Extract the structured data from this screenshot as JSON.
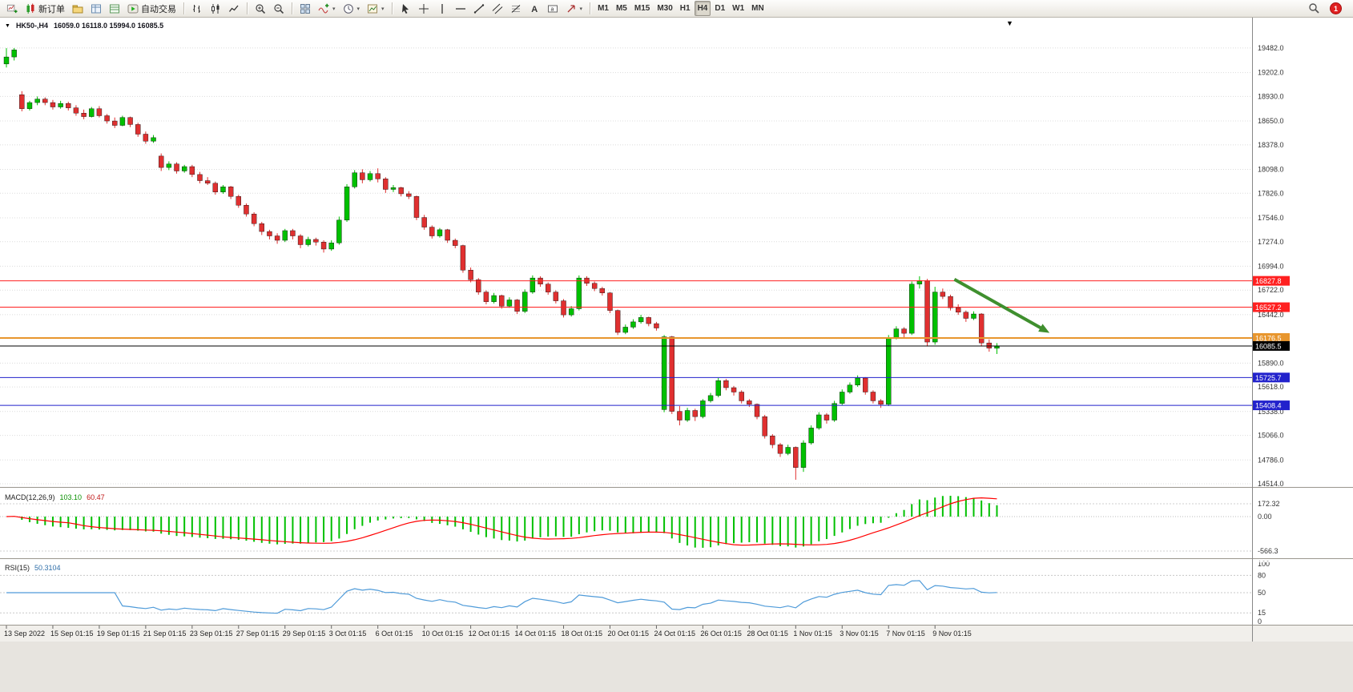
{
  "toolbar": {
    "notification_count": "1",
    "groups": [
      {
        "items": [
          {
            "name": "new-chart",
            "icon": "new-chart"
          },
          {
            "name": "new-order",
            "icon": "new-order",
            "label": "新订单"
          },
          {
            "name": "profiles",
            "icon": "profiles"
          },
          {
            "name": "market-watch",
            "icon": "market-watch"
          },
          {
            "name": "data-window",
            "icon": "data-window"
          },
          {
            "name": "autotrading",
            "icon": "autotrading",
            "label": "自动交易"
          }
        ]
      },
      {
        "items": [
          {
            "name": "bar-chart",
            "icon": "bar-chart"
          },
          {
            "name": "candlestick-chart",
            "icon": "candlestick-chart"
          },
          {
            "name": "line-chart",
            "icon": "line-chart"
          }
        ]
      },
      {
        "items": [
          {
            "name": "zoom-in",
            "icon": "zoom-in"
          },
          {
            "name": "zoom-out",
            "icon": "zoom-out"
          }
        ]
      },
      {
        "items": [
          {
            "name": "tile-windows",
            "icon": "tile-windows"
          },
          {
            "name": "indicators",
            "icon": "indicators",
            "dropdown": true
          },
          {
            "name": "periods",
            "icon": "periods",
            "dropdown": true
          },
          {
            "name": "templates",
            "icon": "templates",
            "dropdown": true
          }
        ]
      },
      {
        "items": [
          {
            "name": "cursor",
            "icon": "cursor"
          },
          {
            "name": "crosshair",
            "icon": "crosshair"
          },
          {
            "name": "vertical-line",
            "icon": "vertical-line"
          },
          {
            "name": "horizontal-line",
            "icon": "horizontal-line"
          },
          {
            "name": "trendline",
            "icon": "trendline"
          },
          {
            "name": "equidistant-channel",
            "icon": "channel"
          },
          {
            "name": "fibonacci",
            "icon": "fibonacci"
          },
          {
            "name": "text",
            "icon": "text"
          },
          {
            "name": "text-label",
            "icon": "text-label"
          },
          {
            "name": "arrows",
            "icon": "arrows",
            "dropdown": true
          }
        ]
      },
      {
        "items": [
          {
            "label": "M1"
          },
          {
            "label": "M5"
          },
          {
            "label": "M15"
          },
          {
            "label": "M30"
          },
          {
            "label": "H1"
          },
          {
            "label": "H4",
            "active": true
          },
          {
            "label": "D1"
          },
          {
            "label": "W1"
          },
          {
            "label": "MN"
          }
        ]
      }
    ]
  },
  "chart_header": {
    "menu_arrow": "▼",
    "symbol_tf": "HK50-,H4",
    "ohlc": "16059.0 16118.0 15994.0 16085.5",
    "shift_marker": "▼"
  },
  "indicators": {
    "macd": {
      "name": "MACD(12,26,9)",
      "value_main": "103.10",
      "value_signal": "60.47"
    },
    "rsi": {
      "name": "RSI(15)",
      "value": "50.3104"
    }
  },
  "chart_data": {
    "type": "candlestick",
    "symbol": "HK50-",
    "timeframe": "H4",
    "ohlc_current": {
      "open": 16059.0,
      "high": 16118.0,
      "low": 15994.0,
      "close": 16085.5
    },
    "price_axis": {
      "ylim": [
        14478,
        19664
      ],
      "ticks": [
        19482.0,
        19202.0,
        18930.0,
        18650.0,
        18378.0,
        18098.0,
        17826.0,
        17546.0,
        17274.0,
        16994.0,
        16722.0,
        16442.0,
        16170.0,
        15890.0,
        15618.0,
        15338.0,
        15066.0,
        14786.0,
        14514.0
      ]
    },
    "time_axis": {
      "labels": [
        "13 Sep 2022",
        "15 Sep 01:15",
        "19 Sep 01:15",
        "21 Sep 01:15",
        "23 Sep 01:15",
        "27 Sep 01:15",
        "29 Sep 01:15",
        "3 Oct 01:15",
        "6 Oct 01:15",
        "10 Oct 01:15",
        "12 Oct 01:15",
        "14 Oct 01:15",
        "18 Oct 01:15",
        "20 Oct 01:15",
        "24 Oct 01:15",
        "26 Oct 01:15",
        "28 Oct 01:15",
        "1 Nov 01:15",
        "3 Nov 01:15",
        "7 Nov 01:15",
        "9 Nov 01:15"
      ],
      "bars_per_label": 6
    },
    "candles": [
      [
        19300,
        19480,
        19260,
        19380
      ],
      [
        19380,
        19482,
        19340,
        19460
      ],
      [
        18950,
        18990,
        18760,
        18790
      ],
      [
        18790,
        18880,
        18770,
        18860
      ],
      [
        18860,
        18930,
        18830,
        18900
      ],
      [
        18900,
        18920,
        18830,
        18860
      ],
      [
        18860,
        18890,
        18780,
        18810
      ],
      [
        18810,
        18880,
        18790,
        18850
      ],
      [
        18850,
        18870,
        18770,
        18800
      ],
      [
        18800,
        18830,
        18710,
        18740
      ],
      [
        18740,
        18780,
        18670,
        18700
      ],
      [
        18700,
        18810,
        18690,
        18790
      ],
      [
        18790,
        18820,
        18690,
        18710
      ],
      [
        18710,
        18730,
        18620,
        18650
      ],
      [
        18650,
        18690,
        18570,
        18600
      ],
      [
        18600,
        18710,
        18590,
        18690
      ],
      [
        18690,
        18700,
        18580,
        18610
      ],
      [
        18610,
        18630,
        18470,
        18500
      ],
      [
        18500,
        18530,
        18390,
        18420
      ],
      [
        18420,
        18490,
        18400,
        18460
      ],
      [
        18250,
        18280,
        18080,
        18120
      ],
      [
        18120,
        18190,
        18090,
        18160
      ],
      [
        18160,
        18180,
        18050,
        18080
      ],
      [
        18080,
        18150,
        18060,
        18130
      ],
      [
        18130,
        18150,
        18010,
        18040
      ],
      [
        18040,
        18070,
        17940,
        17970
      ],
      [
        17970,
        18010,
        17920,
        17940
      ],
      [
        17940,
        17960,
        17810,
        17840
      ],
      [
        17840,
        17920,
        17820,
        17900
      ],
      [
        17900,
        17910,
        17760,
        17790
      ],
      [
        17790,
        17810,
        17660,
        17690
      ],
      [
        17690,
        17710,
        17560,
        17590
      ],
      [
        17590,
        17610,
        17450,
        17480
      ],
      [
        17480,
        17500,
        17350,
        17390
      ],
      [
        17390,
        17410,
        17300,
        17340
      ],
      [
        17340,
        17370,
        17250,
        17290
      ],
      [
        17290,
        17420,
        17270,
        17400
      ],
      [
        17400,
        17420,
        17300,
        17340
      ],
      [
        17340,
        17360,
        17200,
        17240
      ],
      [
        17240,
        17330,
        17220,
        17300
      ],
      [
        17300,
        17320,
        17230,
        17270
      ],
      [
        17270,
        17290,
        17150,
        17190
      ],
      [
        17190,
        17290,
        17170,
        17260
      ],
      [
        17260,
        17560,
        17240,
        17520
      ],
      [
        17520,
        17930,
        17500,
        17900
      ],
      [
        17900,
        18090,
        17880,
        18060
      ],
      [
        18060,
        18100,
        17940,
        17980
      ],
      [
        17980,
        18080,
        17960,
        18050
      ],
      [
        18050,
        18110,
        17950,
        17990
      ],
      [
        17990,
        18010,
        17830,
        17870
      ],
      [
        17870,
        17920,
        17840,
        17890
      ],
      [
        17890,
        17900,
        17790,
        17820
      ],
      [
        17820,
        17850,
        17760,
        17790
      ],
      [
        17790,
        17800,
        17520,
        17550
      ],
      [
        17550,
        17580,
        17410,
        17440
      ],
      [
        17440,
        17460,
        17310,
        17340
      ],
      [
        17340,
        17430,
        17320,
        17410
      ],
      [
        17410,
        17420,
        17260,
        17290
      ],
      [
        17290,
        17310,
        17200,
        17230
      ],
      [
        17230,
        17240,
        16920,
        16950
      ],
      [
        16950,
        16980,
        16810,
        16840
      ],
      [
        16840,
        16860,
        16670,
        16700
      ],
      [
        16700,
        16720,
        16560,
        16590
      ],
      [
        16590,
        16690,
        16570,
        16660
      ],
      [
        16660,
        16670,
        16510,
        16540
      ],
      [
        16540,
        16640,
        16520,
        16610
      ],
      [
        16610,
        16620,
        16450,
        16480
      ],
      [
        16480,
        16730,
        16460,
        16700
      ],
      [
        16700,
        16890,
        16680,
        16860
      ],
      [
        16860,
        16880,
        16760,
        16790
      ],
      [
        16790,
        16810,
        16670,
        16700
      ],
      [
        16700,
        16720,
        16570,
        16600
      ],
      [
        16600,
        16620,
        16410,
        16440
      ],
      [
        16440,
        16540,
        16420,
        16510
      ],
      [
        16510,
        16890,
        16490,
        16860
      ],
      [
        16860,
        16880,
        16770,
        16800
      ],
      [
        16800,
        16820,
        16710,
        16740
      ],
      [
        16740,
        16760,
        16660,
        16690
      ],
      [
        16690,
        16700,
        16460,
        16490
      ],
      [
        16490,
        16500,
        16210,
        16240
      ],
      [
        16240,
        16330,
        16220,
        16300
      ],
      [
        16300,
        16390,
        16280,
        16360
      ],
      [
        16360,
        16440,
        16340,
        16410
      ],
      [
        16410,
        16420,
        16310,
        16340
      ],
      [
        16340,
        16360,
        16260,
        16290
      ],
      [
        15360,
        16210,
        15330,
        16190
      ],
      [
        16190,
        16200,
        15310,
        15340
      ],
      [
        15340,
        15400,
        15180,
        15240
      ],
      [
        15240,
        15380,
        15220,
        15350
      ],
      [
        15350,
        15370,
        15230,
        15280
      ],
      [
        15280,
        15480,
        15260,
        15460
      ],
      [
        15460,
        15550,
        15440,
        15520
      ],
      [
        15520,
        15720,
        15500,
        15690
      ],
      [
        15690,
        15710,
        15580,
        15610
      ],
      [
        15610,
        15630,
        15520,
        15560
      ],
      [
        15560,
        15580,
        15430,
        15460
      ],
      [
        15460,
        15480,
        15390,
        15420
      ],
      [
        15420,
        15430,
        15250,
        15280
      ],
      [
        15280,
        15300,
        15030,
        15060
      ],
      [
        15060,
        15080,
        14920,
        14960
      ],
      [
        14960,
        14980,
        14820,
        14860
      ],
      [
        14860,
        14960,
        14840,
        14930
      ],
      [
        14930,
        14940,
        14560,
        14700
      ],
      [
        14700,
        15010,
        14650,
        14980
      ],
      [
        14980,
        15180,
        14960,
        15150
      ],
      [
        15150,
        15330,
        15130,
        15300
      ],
      [
        15300,
        15320,
        15200,
        15240
      ],
      [
        15240,
        15460,
        15220,
        15430
      ],
      [
        15430,
        15590,
        15410,
        15560
      ],
      [
        15560,
        15670,
        15540,
        15640
      ],
      [
        15640,
        15750,
        15620,
        15720
      ],
      [
        15720,
        15730,
        15530,
        15560
      ],
      [
        15560,
        15580,
        15430,
        15460
      ],
      [
        15460,
        15480,
        15380,
        15420
      ],
      [
        15420,
        16210,
        15400,
        16180
      ],
      [
        16180,
        16310,
        16160,
        16280
      ],
      [
        16280,
        16300,
        16180,
        16230
      ],
      [
        16230,
        16820,
        16210,
        16790
      ],
      [
        16790,
        16880,
        16740,
        16830
      ],
      [
        16830,
        16850,
        16080,
        16130
      ],
      [
        16130,
        16760,
        16100,
        16700
      ],
      [
        16700,
        16740,
        16620,
        16650
      ],
      [
        16650,
        16670,
        16490,
        16520
      ],
      [
        16520,
        16560,
        16440,
        16470
      ],
      [
        16470,
        16490,
        16360,
        16400
      ],
      [
        16400,
        16480,
        16380,
        16450
      ],
      [
        16450,
        16460,
        16080,
        16120
      ],
      [
        16120,
        16160,
        16020,
        16060
      ],
      [
        16059,
        16118,
        15994,
        16085.5
      ]
    ],
    "hlines": [
      {
        "price": 16827.8,
        "label": "16827.8",
        "color": "#FF2020",
        "width": 1
      },
      {
        "price": 16527.2,
        "label": "16527.2",
        "color": "#FF2020",
        "width": 1
      },
      {
        "price": 16176.5,
        "label": "16176.5",
        "color": "#E8962E",
        "width": 2
      },
      {
        "price": 16085.5,
        "label": "16085.5",
        "color": "#000000",
        "width": 1,
        "role": "current-price"
      },
      {
        "price": 15725.7,
        "label": "15725.7",
        "color": "#2222CC",
        "width": 1
      },
      {
        "price": 15408.4,
        "label": "15408.4",
        "color": "#2222CC",
        "width": 1
      }
    ],
    "arrow": {
      "bar_from": 122.5,
      "price_from": 16845,
      "bar_to": 134.8,
      "price_to": 16235,
      "color": "#3F8F2E"
    },
    "macd": {
      "params": [
        12,
        26,
        9
      ],
      "axis_labels": [
        "172.32",
        "0.00",
        "-566.3"
      ],
      "histogram_color": "#00C000",
      "signal_color": "#FF0000"
    },
    "rsi": {
      "period": 15,
      "levels": [
        80,
        50,
        15
      ],
      "axis_labels": [
        "100",
        "80",
        "50",
        "15",
        "0"
      ],
      "line_color": "#4F9BD9"
    },
    "colors": {
      "up": "#00C000",
      "down": "#E03030",
      "grid": "#DCDCDC",
      "bg": "#FFFFFF"
    }
  }
}
